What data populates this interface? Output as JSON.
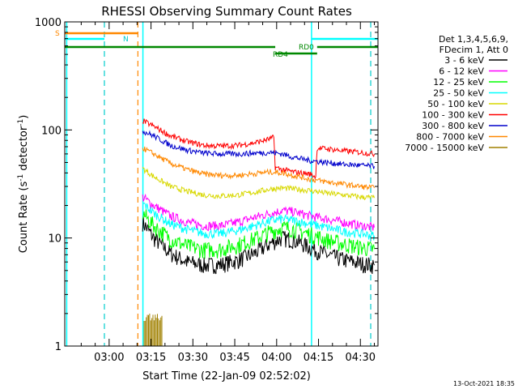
{
  "chart_data": {
    "type": "line",
    "title": "RHESSI Observing Summary Count Rates",
    "xlabel": "Start Time (22-Jan-09 02:52:02)",
    "ylabel_main": "Count Rate (s",
    "ylabel_sup1": "-1",
    "ylabel_mid": " detector",
    "ylabel_sup2": "-1",
    "ylabel_end": ")",
    "y_scale": "log",
    "ylim": [
      1,
      1000
    ],
    "xlim_minutes": [
      -7.9,
      104.3
    ],
    "x_ticks": [
      {
        "m": 8,
        "label": "03:00"
      },
      {
        "m": 23,
        "label": "03:15"
      },
      {
        "m": 38,
        "label": "03:30"
      },
      {
        "m": 53,
        "label": "03:45"
      },
      {
        "m": 68,
        "label": "04:00"
      },
      {
        "m": 83,
        "label": "04:15"
      },
      {
        "m": 98,
        "label": "04:30"
      }
    ],
    "y_ticks": [
      {
        "v": 1,
        "label": "1"
      },
      {
        "v": 10,
        "label": "10"
      },
      {
        "v": 100,
        "label": "100"
      },
      {
        "v": 1000,
        "label": "1000"
      }
    ],
    "legend": {
      "placement": "right",
      "header1": "Det 1,3,4,5,6,9,",
      "header2": "FDecim 1, Att 0"
    },
    "series": [
      {
        "name": "3 - 6 keV",
        "color": "#000000",
        "values": [
          [
            20,
            14
          ],
          [
            24,
            10
          ],
          [
            30,
            7.2
          ],
          [
            36,
            6
          ],
          [
            42,
            5.6
          ],
          [
            48,
            5.7
          ],
          [
            54,
            6.2
          ],
          [
            60,
            7.2
          ],
          [
            66,
            9
          ],
          [
            70,
            10
          ],
          [
            74,
            9.6
          ],
          [
            80,
            8.2
          ],
          [
            86,
            7
          ],
          [
            92,
            6.3
          ],
          [
            98,
            5.8
          ],
          [
            103,
            5.6
          ]
        ]
      },
      {
        "name": "6 - 12 keV",
        "color": "#ff00ff",
        "values": [
          [
            20,
            24
          ],
          [
            24,
            20
          ],
          [
            30,
            16
          ],
          [
            36,
            14
          ],
          [
            42,
            13
          ],
          [
            48,
            13
          ],
          [
            54,
            14
          ],
          [
            60,
            15.5
          ],
          [
            66,
            17
          ],
          [
            70,
            18
          ],
          [
            74,
            17.5
          ],
          [
            80,
            16
          ],
          [
            86,
            15
          ],
          [
            92,
            14
          ],
          [
            98,
            13
          ],
          [
            103,
            12.5
          ]
        ]
      },
      {
        "name": "12 - 25 keV",
        "color": "#00ff00",
        "values": [
          [
            20,
            17
          ],
          [
            24,
            13
          ],
          [
            30,
            9.8
          ],
          [
            36,
            8.4
          ],
          [
            42,
            7.8
          ],
          [
            48,
            7.9
          ],
          [
            54,
            8.6
          ],
          [
            60,
            9.8
          ],
          [
            66,
            11.5
          ],
          [
            70,
            12.5
          ],
          [
            74,
            12.2
          ],
          [
            80,
            10.8
          ],
          [
            86,
            9.6
          ],
          [
            92,
            8.8
          ],
          [
            98,
            8.2
          ],
          [
            103,
            7.9
          ]
        ]
      },
      {
        "name": "25 - 50 keV",
        "color": "#00ffff",
        "values": [
          [
            20,
            21
          ],
          [
            24,
            17
          ],
          [
            30,
            13.5
          ],
          [
            36,
            12
          ],
          [
            42,
            11
          ],
          [
            48,
            11
          ],
          [
            54,
            11.8
          ],
          [
            60,
            13
          ],
          [
            66,
            14.5
          ],
          [
            70,
            15
          ],
          [
            74,
            14.6
          ],
          [
            80,
            13.5
          ],
          [
            86,
            12.5
          ],
          [
            92,
            11.5
          ],
          [
            98,
            11
          ],
          [
            103,
            10.5
          ]
        ]
      },
      {
        "name": "50 - 100 keV",
        "color": "#d8d800",
        "values": [
          [
            20,
            44
          ],
          [
            24,
            37
          ],
          [
            30,
            30
          ],
          [
            36,
            27
          ],
          [
            42,
            25
          ],
          [
            48,
            24.5
          ],
          [
            54,
            25
          ],
          [
            60,
            26.5
          ],
          [
            66,
            28.5
          ],
          [
            70,
            29
          ],
          [
            74,
            28.5
          ],
          [
            80,
            27.5
          ],
          [
            86,
            26
          ],
          [
            92,
            25
          ],
          [
            98,
            24
          ],
          [
            103,
            23.5
          ]
        ]
      },
      {
        "name": "100 - 300 keV",
        "color": "#ff0000",
        "values": [
          [
            20,
            122
          ],
          [
            24,
            108
          ],
          [
            30,
            88
          ],
          [
            36,
            78
          ],
          [
            42,
            72
          ],
          [
            48,
            71
          ],
          [
            54,
            72
          ],
          [
            60,
            76
          ],
          [
            66,
            83
          ],
          [
            67,
            86
          ],
          [
            67.5,
            45
          ],
          [
            70,
            43
          ],
          [
            74,
            41
          ],
          [
            80,
            39
          ],
          [
            82,
            37
          ],
          [
            82.5,
            68
          ],
          [
            86,
            67
          ],
          [
            92,
            64
          ],
          [
            98,
            62
          ],
          [
            103,
            60
          ]
        ]
      },
      {
        "name": "300 - 800 keV",
        "color": "#0000cc",
        "values": [
          [
            20,
            98
          ],
          [
            24,
            88
          ],
          [
            30,
            72
          ],
          [
            36,
            65
          ],
          [
            42,
            61
          ],
          [
            48,
            60
          ],
          [
            54,
            60
          ],
          [
            60,
            61
          ],
          [
            66,
            62
          ],
          [
            70,
            60
          ],
          [
            74,
            56
          ],
          [
            80,
            52
          ],
          [
            86,
            50
          ],
          [
            92,
            48
          ],
          [
            98,
            47
          ],
          [
            103,
            46
          ]
        ]
      },
      {
        "name": "800 - 7000 keV",
        "color": "#ff8800",
        "values": [
          [
            20,
            68
          ],
          [
            24,
            60
          ],
          [
            30,
            49
          ],
          [
            36,
            43
          ],
          [
            42,
            39
          ],
          [
            48,
            38
          ],
          [
            54,
            38
          ],
          [
            60,
            39.5
          ],
          [
            66,
            41
          ],
          [
            70,
            40
          ],
          [
            74,
            38
          ],
          [
            80,
            35
          ],
          [
            86,
            33
          ],
          [
            92,
            31.5
          ],
          [
            98,
            30
          ],
          [
            103,
            29
          ]
        ]
      },
      {
        "name": "7000 - 15000 keV",
        "color": "#a08000",
        "values": [
          [
            20.5,
            2
          ],
          [
            27,
            2
          ]
        ]
      }
    ],
    "annotations": {
      "s_label": "S",
      "n_label": "N",
      "rd0_label": "RD0",
      "rd4_label": "RD4",
      "timestamp": "13-Oct-2021 18:35"
    }
  }
}
